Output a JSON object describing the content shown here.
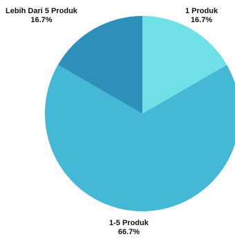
{
  "chart_data": {
    "type": "pie",
    "title": "",
    "slices": [
      {
        "label": "1 Produk",
        "percent_label": "16.7%",
        "value": 16.7,
        "color": "#6fe0e6"
      },
      {
        "label": "1-5 Produk",
        "percent_label": "66.7%",
        "value": 66.7,
        "color": "#45b8d6"
      },
      {
        "label": "Lebih Dari 5 Produk",
        "percent_label": "16.7%",
        "value": 16.7,
        "color": "#2e8fba"
      }
    ],
    "start_angle_deg": 0,
    "direction": "clockwise",
    "legend": "none"
  }
}
